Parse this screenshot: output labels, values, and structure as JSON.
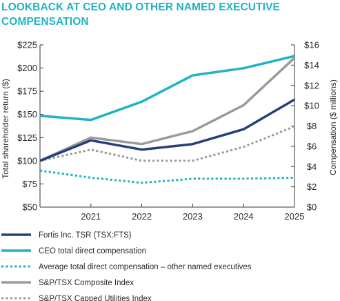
{
  "header": {
    "title_line1": "LOOKBACK AT CEO AND OTHER NAMED EXECUTIVE",
    "title_line2": "COMPENSATION"
  },
  "chart_data": {
    "type": "line",
    "x": [
      2020,
      2021,
      2022,
      2023,
      2024,
      2025
    ],
    "x_tick_labels": [
      "2021",
      "2022",
      "2023",
      "2024",
      "2025"
    ],
    "left_axis": {
      "label": "Total shareholder return ($)",
      "ylim": [
        50,
        225
      ],
      "tick_labels": [
        "$225",
        "$200",
        "$175",
        "$150",
        "$125",
        "$100",
        "$75",
        "$50"
      ],
      "tick_values": [
        225,
        200,
        175,
        150,
        125,
        100,
        75,
        50
      ]
    },
    "right_axis": {
      "label": "Compensation ($ millions)",
      "ylim": [
        0,
        16
      ],
      "tick_labels": [
        "$16",
        "$14",
        "$12",
        "$10",
        "$8",
        "$6",
        "$4",
        "$2",
        "$0"
      ],
      "tick_values": [
        16,
        14,
        12,
        10,
        8,
        6,
        4,
        2,
        0
      ]
    },
    "grid": false,
    "legend_position": "bottom",
    "series": [
      {
        "name": "Fortis Inc. TSR (TSX:FTS)",
        "axis": "left",
        "color": "#243f7a",
        "style": "solid",
        "values": [
          100,
          122,
          112,
          118,
          134,
          166
        ]
      },
      {
        "name": "CEO total direct compensation",
        "axis": "right",
        "color": "#1fb3c3",
        "style": "solid",
        "values": [
          9.0,
          8.6,
          10.4,
          13.0,
          13.7,
          14.9
        ]
      },
      {
        "name": "Average total direct compensation – other named executives",
        "axis": "right",
        "color": "#1fb3c3",
        "style": "dotted",
        "values": [
          3.6,
          2.9,
          2.4,
          2.8,
          2.8,
          2.9
        ]
      },
      {
        "name": "S&P/TSX Composite Index",
        "axis": "left",
        "color": "#9a9a9a",
        "style": "solid",
        "values": [
          100,
          125,
          118,
          132,
          160,
          211
        ]
      },
      {
        "name": "S&P/TSX Capped Utilities Index",
        "axis": "left",
        "color": "#9a9a9a",
        "style": "dotted",
        "values": [
          100,
          112,
          100,
          100,
          115,
          137
        ]
      }
    ]
  }
}
